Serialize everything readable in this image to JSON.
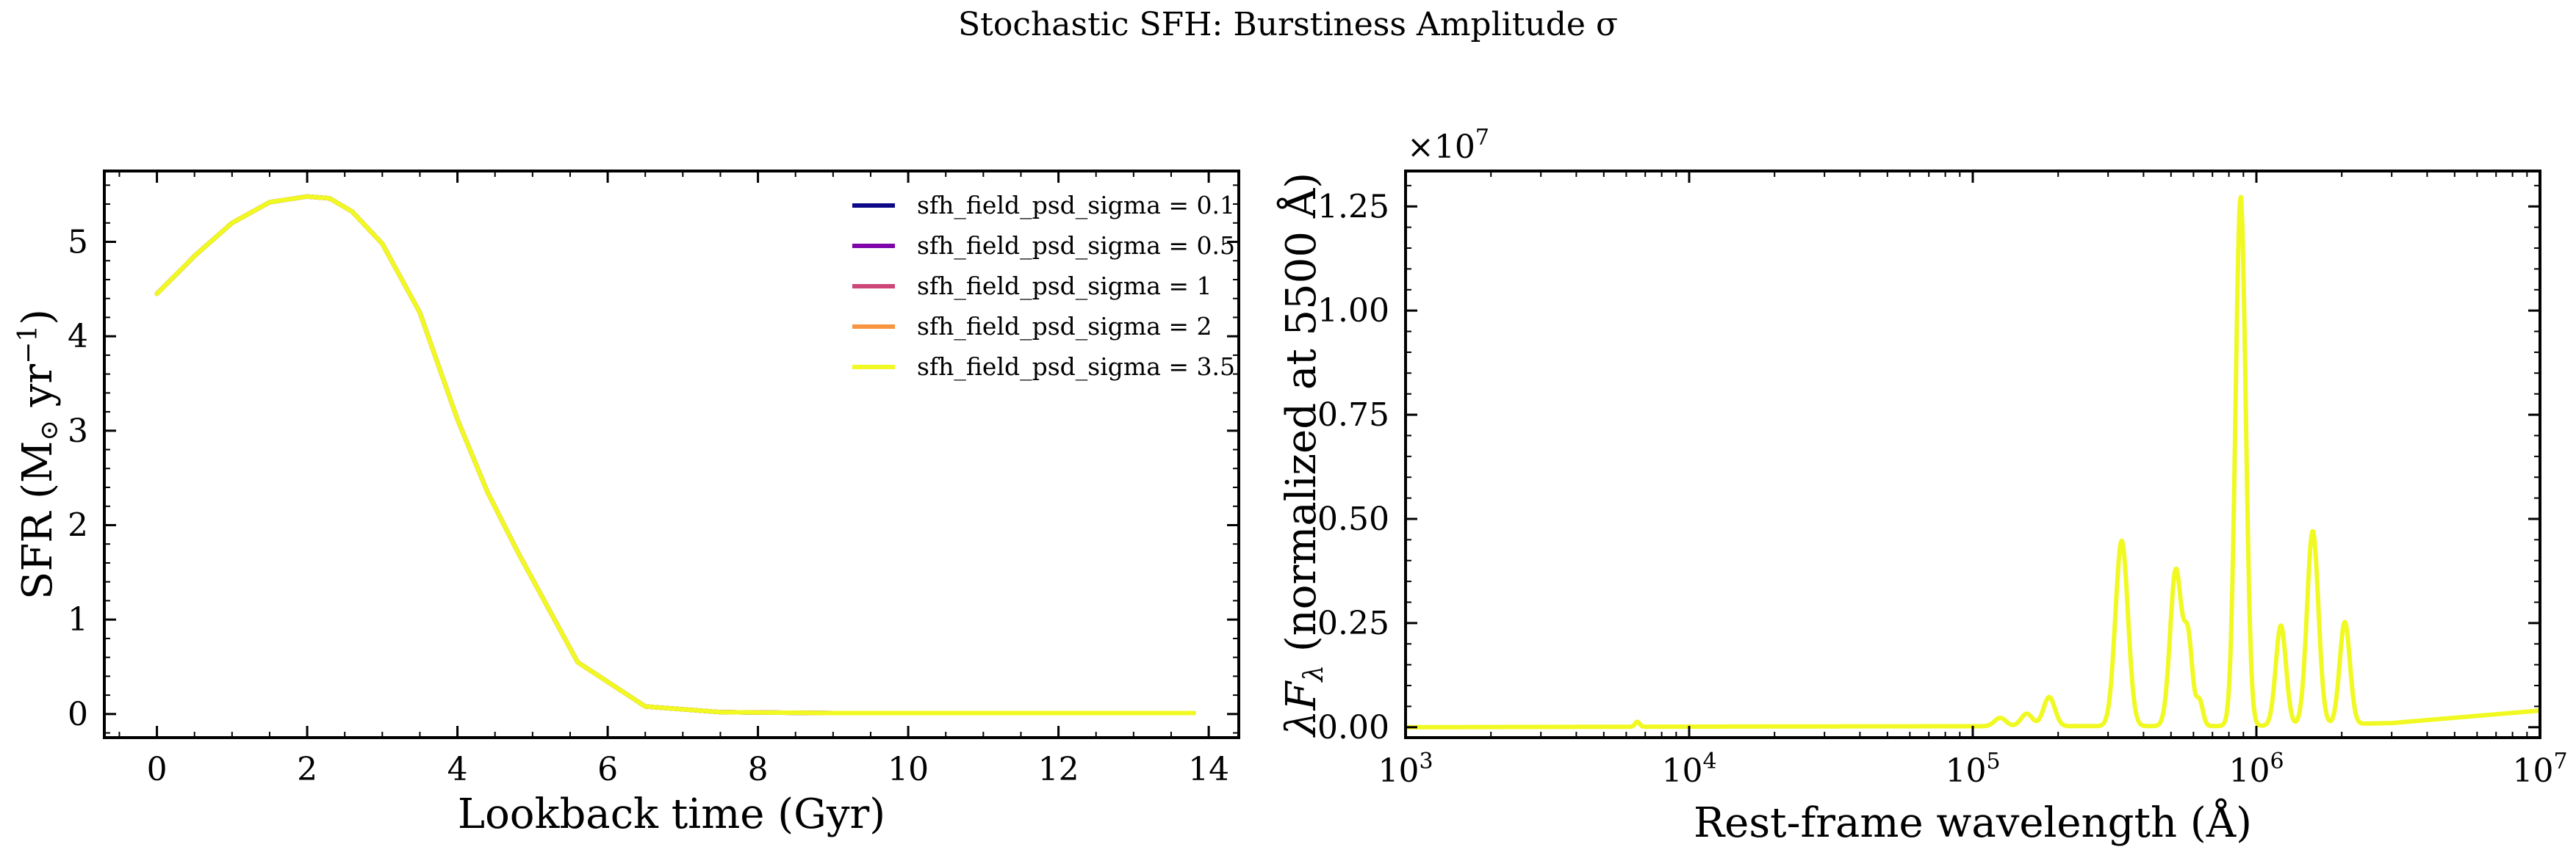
{
  "figure": {
    "suptitle": "Stochastic SFH: Burstiness Amplitude σ"
  },
  "chart_data": [
    {
      "type": "line",
      "xlabel": "Lookback time (Gyr)",
      "ylabel_parts": [
        "SFR (M",
        "⊙",
        " yr",
        "−1",
        ")"
      ],
      "xlim": [
        -0.7,
        14.4
      ],
      "ylim": [
        -0.25,
        5.75
      ],
      "xticks": [
        0,
        2,
        4,
        6,
        8,
        10,
        12,
        14
      ],
      "yticks": [
        0,
        1,
        2,
        3,
        4,
        5
      ],
      "legend_position": "top-right",
      "series": [
        {
          "name": "sfh_field_psd_sigma = 0.1",
          "color": "#0d0887"
        },
        {
          "name": "sfh_field_psd_sigma = 0.5",
          "color": "#7e03a8"
        },
        {
          "name": "sfh_field_psd_sigma = 1",
          "color": "#cc4778"
        },
        {
          "name": "sfh_field_psd_sigma = 2",
          "color": "#f89540"
        },
        {
          "name": "sfh_field_psd_sigma = 3.5",
          "color": "#f0f921"
        }
      ],
      "x": [
        0,
        0.5,
        1.0,
        1.5,
        2.0,
        2.3,
        2.6,
        3.0,
        3.5,
        4.0,
        4.4,
        4.8,
        5.6,
        6.5,
        7.5,
        9.0,
        11.0,
        13.8
      ],
      "y": [
        4.45,
        4.85,
        5.2,
        5.42,
        5.48,
        5.46,
        5.32,
        4.98,
        4.25,
        3.12,
        2.35,
        1.72,
        0.55,
        0.08,
        0.02,
        0.01,
        0.01,
        0.01
      ]
    },
    {
      "type": "line",
      "xlabel": "Rest-frame wavelength (Å)",
      "ylabel_parts": [
        "λF",
        "λ",
        " (normalized at 5500 Å)"
      ],
      "offset_text": "×10",
      "offset_exp": "7",
      "xscale": "log",
      "xlim": [
        1000,
        10000000
      ],
      "ylim": [
        -0.025,
        1.335
      ],
      "xticks": [
        1000,
        10000,
        100000,
        1000000,
        10000000
      ],
      "xtick_labels": [
        {
          "base": "10",
          "exp": "3"
        },
        {
          "base": "10",
          "exp": "4"
        },
        {
          "base": "10",
          "exp": "5"
        },
        {
          "base": "10",
          "exp": "6"
        },
        {
          "base": "10",
          "exp": "7"
        }
      ],
      "yticks": [
        0,
        0.25,
        0.5,
        0.75,
        1.0,
        1.25
      ],
      "ytick_labels": [
        "0.00",
        "0.25",
        "0.50",
        "0.75",
        "1.00",
        "1.25"
      ],
      "y_units_multiplier": 10000000,
      "series_color": "#f0f921",
      "peaks": [
        {
          "lambda": 6563,
          "height": 0.012,
          "width": 0.008
        },
        {
          "lambda": 125000,
          "height": 0.02,
          "width": 0.02
        },
        {
          "lambda": 155000,
          "height": 0.03,
          "width": 0.02
        },
        {
          "lambda": 186000,
          "height": 0.07,
          "width": 0.02
        },
        {
          "lambda": 335000,
          "height": 0.445,
          "width": 0.022
        },
        {
          "lambda": 520000,
          "height": 0.375,
          "width": 0.02
        },
        {
          "lambda": 575000,
          "height": 0.2,
          "width": 0.015
        },
        {
          "lambda": 630000,
          "height": 0.06,
          "width": 0.012
        },
        {
          "lambda": 880000,
          "height": 1.27,
          "width": 0.018
        },
        {
          "lambda": 1220000,
          "height": 0.24,
          "width": 0.018
        },
        {
          "lambda": 1580000,
          "height": 0.465,
          "width": 0.02
        },
        {
          "lambda": 2050000,
          "height": 0.245,
          "width": 0.018
        }
      ],
      "continuum": [
        {
          "lambda": 1000,
          "value": 0.0
        },
        {
          "lambda": 30000,
          "value": 0.002
        },
        {
          "lambda": 1000000,
          "value": 0.003
        },
        {
          "lambda": 3000000,
          "value": 0.01
        },
        {
          "lambda": 10000000,
          "value": 0.04
        }
      ]
    }
  ]
}
